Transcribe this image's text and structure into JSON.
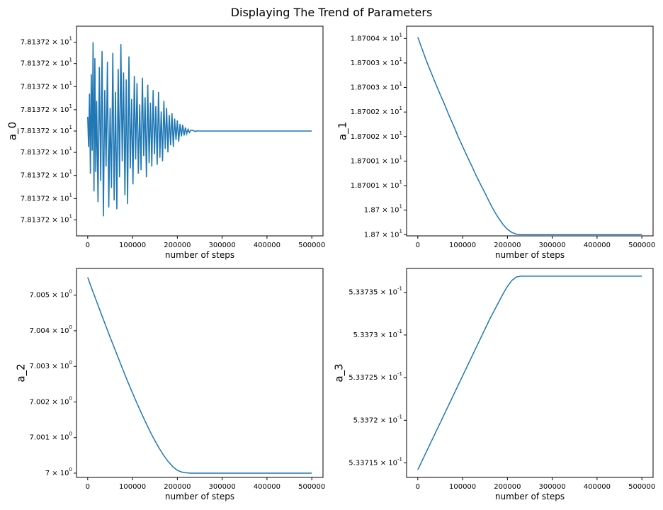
{
  "figure": {
    "title": "Displaying The Trend of Parameters"
  },
  "colors": {
    "line": "#1f77b4",
    "axes": "#000000"
  },
  "chart_data": [
    {
      "type": "line",
      "xlabel": "number of steps",
      "ylabel": "a_0",
      "xlim": [
        -25000,
        525000
      ],
      "ylim": [
        -5.9,
        5.9
      ],
      "yscale": "log",
      "grid": false,
      "xticks": [
        {
          "value": 0,
          "label": "0"
        },
        {
          "value": 100000,
          "label": "100000"
        },
        {
          "value": 200000,
          "label": "200000"
        },
        {
          "value": 300000,
          "label": "300000"
        },
        {
          "value": 400000,
          "label": "400000"
        },
        {
          "value": 500000,
          "label": "500000"
        }
      ],
      "yticks": [
        {
          "value": 5,
          "label": "7.81372 × 10^1"
        },
        {
          "value": 3.8,
          "label": "7.81372 × 10^1"
        },
        {
          "value": 2.5,
          "label": "7.81372 × 10^1"
        },
        {
          "value": 1.2,
          "label": "7.81372 × 10^1"
        },
        {
          "value": 0,
          "label": "7.81372 × 10^1"
        },
        {
          "value": -1.2,
          "label": "7.81372 × 10^1"
        },
        {
          "value": -2.5,
          "label": "7.81372 × 10^1"
        },
        {
          "value": -3.8,
          "label": "7.81372 × 10^1"
        },
        {
          "value": -5,
          "label": "7.81372 × 10^1"
        }
      ],
      "series": [
        {
          "x": [
            0,
            2000,
            4000,
            6000,
            8000,
            10000,
            12000,
            14000,
            16000,
            18000,
            20000,
            23000,
            26000,
            29000,
            32000,
            35000,
            38000,
            41000,
            44000,
            47000,
            50000,
            53000,
            56000,
            59000,
            62000,
            65000,
            68000,
            71000,
            74000,
            77000,
            80000,
            83000,
            86000,
            89000,
            92000,
            95000,
            98000,
            101000,
            104000,
            107000,
            110000,
            113000,
            116000,
            119000,
            122000,
            125000,
            128000,
            131000,
            134000,
            137000,
            140000,
            143000,
            146000,
            149000,
            152000,
            155000,
            158000,
            161000,
            164000,
            167000,
            170000,
            173000,
            176000,
            179000,
            182000,
            185000,
            188000,
            191000,
            194000,
            197000,
            200000,
            203000,
            206000,
            209000,
            212000,
            215000,
            218000,
            221000,
            224000,
            227000,
            230000,
            235000,
            240000,
            245000,
            250000,
            260000,
            300000,
            400000,
            500000
          ],
          "y": [
            0.8,
            -0.9,
            2.1,
            -2.4,
            3.2,
            -1.1,
            5.0,
            -3.4,
            4.1,
            -2.3,
            1.7,
            -4.0,
            3.6,
            -2.8,
            4.5,
            -4.8,
            2.3,
            -2.0,
            3.9,
            -4.3,
            1.3,
            -3.2,
            4.4,
            -3.9,
            2.2,
            -4.4,
            3.5,
            -2.6,
            4.9,
            -1.7,
            3.3,
            -3.6,
            2.9,
            -4.1,
            4.2,
            -2.1,
            1.8,
            -3.0,
            3.1,
            -1.6,
            2.7,
            -2.4,
            1.5,
            -2.2,
            3.0,
            -1.4,
            1.9,
            -2.6,
            2.6,
            -1.8,
            1.6,
            -2.0,
            2.3,
            -1.3,
            1.4,
            -1.9,
            2.2,
            -1.5,
            1.1,
            -1.7,
            1.7,
            -1.0,
            1.3,
            -1.2,
            0.9,
            -0.8,
            1.0,
            -0.9,
            0.7,
            -0.5,
            0.6,
            -0.6,
            0.4,
            -0.3,
            0.35,
            -0.25,
            0.2,
            -0.15,
            0.1,
            -0.08,
            0.05,
            0.03,
            -0.02,
            0.01,
            0,
            0,
            0,
            0,
            0
          ]
        }
      ]
    },
    {
      "type": "line",
      "xlabel": "number of steps",
      "ylabel": "a_1",
      "xlim": [
        -25000,
        525000
      ],
      "ylim": [
        -0.05,
        8.5
      ],
      "yscale": "log",
      "grid": false,
      "xticks": [
        {
          "value": 0,
          "label": "0"
        },
        {
          "value": 100000,
          "label": "100000"
        },
        {
          "value": 200000,
          "label": "200000"
        },
        {
          "value": 300000,
          "label": "300000"
        },
        {
          "value": 400000,
          "label": "400000"
        },
        {
          "value": 500000,
          "label": "500000"
        }
      ],
      "yticks": [
        {
          "value": 8,
          "label": "1.87004 × 10^1"
        },
        {
          "value": 7,
          "label": "1.87003 × 10^1"
        },
        {
          "value": 6,
          "label": "1.87003 × 10^1"
        },
        {
          "value": 5,
          "label": "1.87002 × 10^1"
        },
        {
          "value": 4,
          "label": "1.87002 × 10^1"
        },
        {
          "value": 3,
          "label": "1.87001 × 10^1"
        },
        {
          "value": 2,
          "label": "1.87001 × 10^1"
        },
        {
          "value": 1,
          "label": "1.87 × 10^1"
        },
        {
          "value": 0,
          "label": "1.87 × 10^1"
        }
      ],
      "series": [
        {
          "x": [
            0,
            5000,
            10000,
            20000,
            30000,
            40000,
            50000,
            60000,
            70000,
            80000,
            90000,
            100000,
            110000,
            120000,
            130000,
            140000,
            150000,
            160000,
            170000,
            180000,
            190000,
            200000,
            210000,
            220000,
            230000,
            300000,
            400000,
            500000
          ],
          "y": [
            8.05,
            7.8,
            7.55,
            7.05,
            6.6,
            6.15,
            5.72,
            5.3,
            4.85,
            4.44,
            4.0,
            3.6,
            3.2,
            2.82,
            2.42,
            2.05,
            1.7,
            1.32,
            0.98,
            0.68,
            0.42,
            0.22,
            0.09,
            0.02,
            0,
            0,
            0,
            0
          ]
        }
      ]
    },
    {
      "type": "line",
      "xlabel": "number of steps",
      "ylabel": "a_2",
      "xlim": [
        -25000,
        525000
      ],
      "ylim": [
        -0.12,
        5.75
      ],
      "yscale": "log",
      "grid": false,
      "xticks": [
        {
          "value": 0,
          "label": "0"
        },
        {
          "value": 100000,
          "label": "100000"
        },
        {
          "value": 200000,
          "label": "200000"
        },
        {
          "value": 300000,
          "label": "300000"
        },
        {
          "value": 400000,
          "label": "400000"
        },
        {
          "value": 500000,
          "label": "500000"
        }
      ],
      "yticks": [
        {
          "value": 5,
          "label": "7.005 × 10^0"
        },
        {
          "value": 4,
          "label": "7.004 × 10^0"
        },
        {
          "value": 3,
          "label": "7.003 × 10^0"
        },
        {
          "value": 2,
          "label": "7.002 × 10^0"
        },
        {
          "value": 1,
          "label": "7.001 × 10^0"
        },
        {
          "value": 0,
          "label": "7 × 10^0"
        }
      ],
      "series": [
        {
          "x": [
            0,
            10000,
            20000,
            30000,
            40000,
            50000,
            60000,
            70000,
            80000,
            90000,
            100000,
            110000,
            120000,
            130000,
            140000,
            150000,
            160000,
            170000,
            180000,
            190000,
            200000,
            210000,
            220000,
            230000,
            240000,
            300000,
            400000,
            500000
          ],
          "y": [
            5.5,
            5.15,
            4.82,
            4.48,
            4.15,
            3.82,
            3.5,
            3.18,
            2.86,
            2.55,
            2.25,
            1.96,
            1.68,
            1.41,
            1.15,
            0.91,
            0.69,
            0.49,
            0.32,
            0.18,
            0.08,
            0.03,
            0.01,
            0,
            0,
            0,
            0,
            0
          ]
        }
      ]
    },
    {
      "type": "line",
      "xlabel": "number of steps",
      "ylabel": "a_3",
      "xlim": [
        -25000,
        525000
      ],
      "ylim": [
        13.3,
        37.8
      ],
      "yscale": "log",
      "grid": false,
      "xticks": [
        {
          "value": 0,
          "label": "0"
        },
        {
          "value": 100000,
          "label": "100000"
        },
        {
          "value": 200000,
          "label": "200000"
        },
        {
          "value": 300000,
          "label": "300000"
        },
        {
          "value": 400000,
          "label": "400000"
        },
        {
          "value": 500000,
          "label": "500000"
        }
      ],
      "yticks": [
        {
          "value": 35,
          "label": "5.33735 × 10^-1"
        },
        {
          "value": 30,
          "label": "5.3373 × 10^-1"
        },
        {
          "value": 25,
          "label": "5.33725 × 10^-1"
        },
        {
          "value": 20,
          "label": "5.3372 × 10^-1"
        },
        {
          "value": 15,
          "label": "5.33715 × 10^-1"
        }
      ],
      "series": [
        {
          "x": [
            0,
            10000,
            20000,
            30000,
            40000,
            50000,
            60000,
            70000,
            80000,
            90000,
            100000,
            110000,
            120000,
            130000,
            140000,
            150000,
            160000,
            170000,
            180000,
            190000,
            200000,
            210000,
            220000,
            230000,
            300000,
            400000,
            500000
          ],
          "y": [
            14.2,
            15.3,
            16.4,
            17.5,
            18.6,
            19.7,
            20.8,
            21.9,
            23.0,
            24.1,
            25.2,
            26.3,
            27.4,
            28.5,
            29.6,
            30.7,
            31.8,
            32.8,
            33.8,
            34.8,
            35.7,
            36.4,
            36.8,
            36.9,
            36.9,
            36.9,
            36.9
          ]
        }
      ]
    }
  ]
}
